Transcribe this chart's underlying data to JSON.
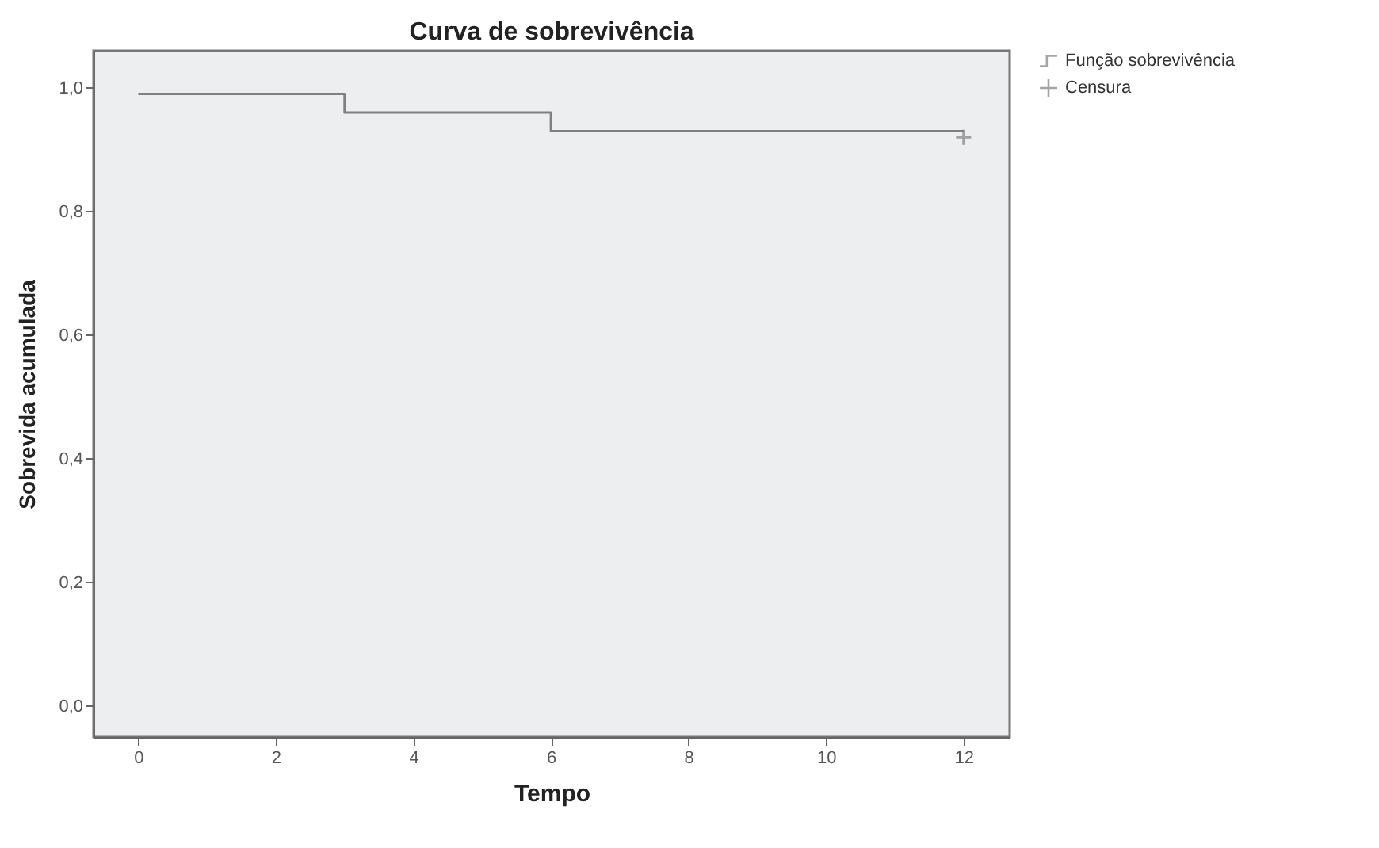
{
  "chart_data": {
    "type": "step",
    "title": "Curva de sobrevivência",
    "xlabel": "Tempo",
    "ylabel": "Sobrevida acumulada",
    "series": [
      {
        "name": "Função sobrevivência",
        "color": "#808080",
        "x": [
          0,
          3,
          6,
          12
        ],
        "values": [
          0.99,
          0.96,
          0.93,
          0.93
        ]
      },
      {
        "name": "Censura",
        "type": "scatter",
        "color": "#808080",
        "marker": "cross",
        "x": [
          12
        ],
        "values": [
          0.92
        ]
      }
    ],
    "xlim": [
      -0.65,
      12.67
    ],
    "xticks": [
      0,
      2,
      4,
      6,
      8,
      10,
      12
    ],
    "ylim": [
      -0.05,
      1.06
    ],
    "yticks": [
      {
        "value": 0,
        "label": "0,0"
      },
      {
        "value": 0.2,
        "label": "0,2"
      },
      {
        "value": 0.4,
        "label": "0,4"
      },
      {
        "value": 0.6,
        "label": "0,6"
      },
      {
        "value": 0.8,
        "label": "0,8"
      },
      {
        "value": 1,
        "label": "1,0"
      }
    ],
    "grid": false,
    "legend": "top right"
  }
}
